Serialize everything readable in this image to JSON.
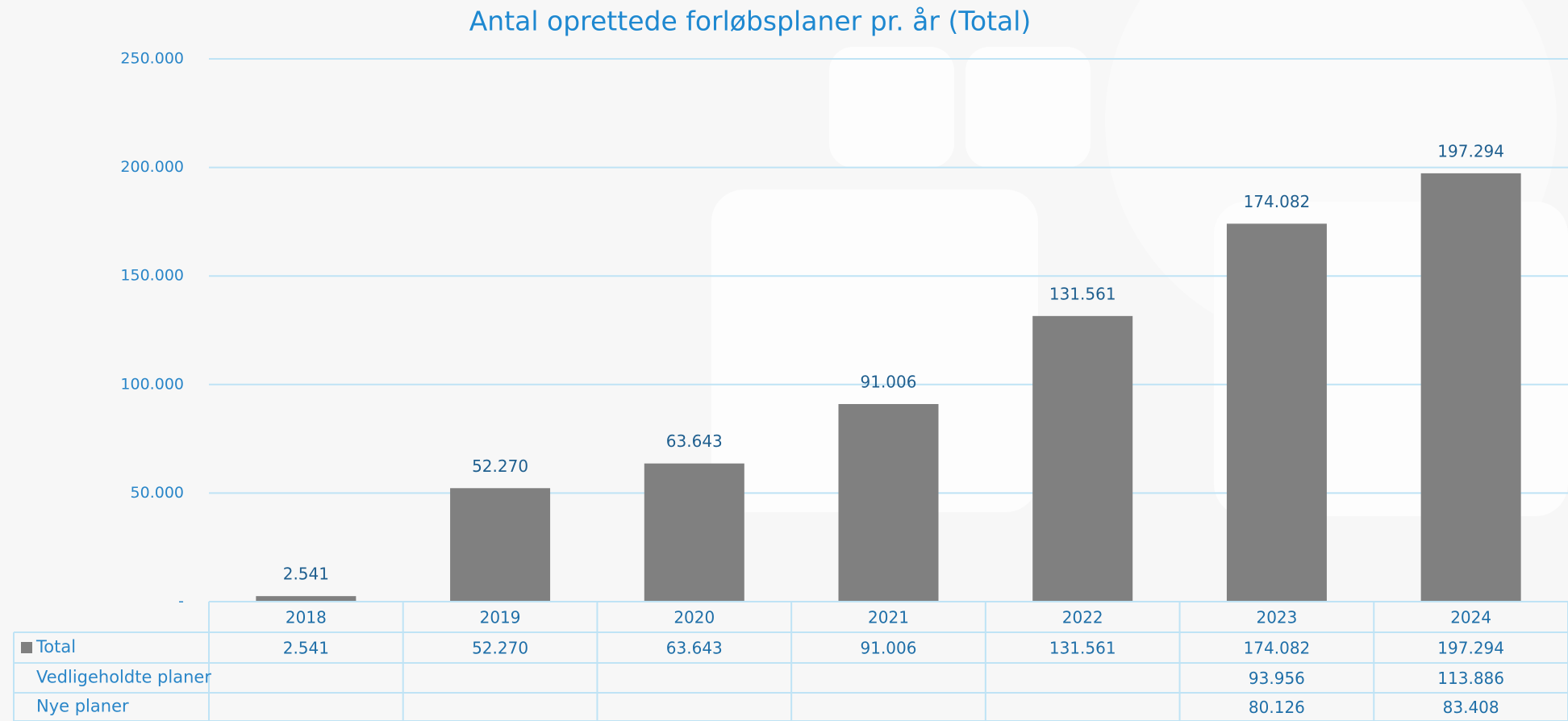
{
  "chart_data": {
    "type": "bar",
    "title": "Antal oprettede forløbsplaner pr. år (Total)",
    "categories": [
      "2018",
      "2019",
      "2020",
      "2021",
      "2022",
      "2023",
      "2024"
    ],
    "series": [
      {
        "name": "Total",
        "color": "#808080",
        "values": [
          2541,
          52270,
          63643,
          91006,
          131561,
          174082,
          197294
        ],
        "value_labels": [
          "2.541",
          "52.270",
          "63.643",
          "91.006",
          "131.561",
          "174.082",
          "197.294"
        ]
      }
    ],
    "data_table": [
      {
        "name": "Vedligeholdte planer",
        "values": [
          null,
          null,
          null,
          null,
          null,
          93956,
          113886
        ],
        "value_labels": [
          null,
          null,
          null,
          null,
          null,
          "93.956",
          "113.886"
        ]
      },
      {
        "name": "Nye planer",
        "values": [
          null,
          null,
          null,
          null,
          null,
          80126,
          83408
        ],
        "value_labels": [
          null,
          null,
          null,
          null,
          null,
          "80.126",
          "83.408"
        ]
      }
    ],
    "ylim": [
      0,
      250000
    ],
    "yticks": [
      {
        "value": 0,
        "label": "-"
      },
      {
        "value": 50000,
        "label": "50.000"
      },
      {
        "value": 100000,
        "label": "100.000"
      },
      {
        "value": 150000,
        "label": "150.000"
      },
      {
        "value": 200000,
        "label": "200.000"
      },
      {
        "value": 250000,
        "label": "250.000"
      }
    ],
    "grid": true
  }
}
